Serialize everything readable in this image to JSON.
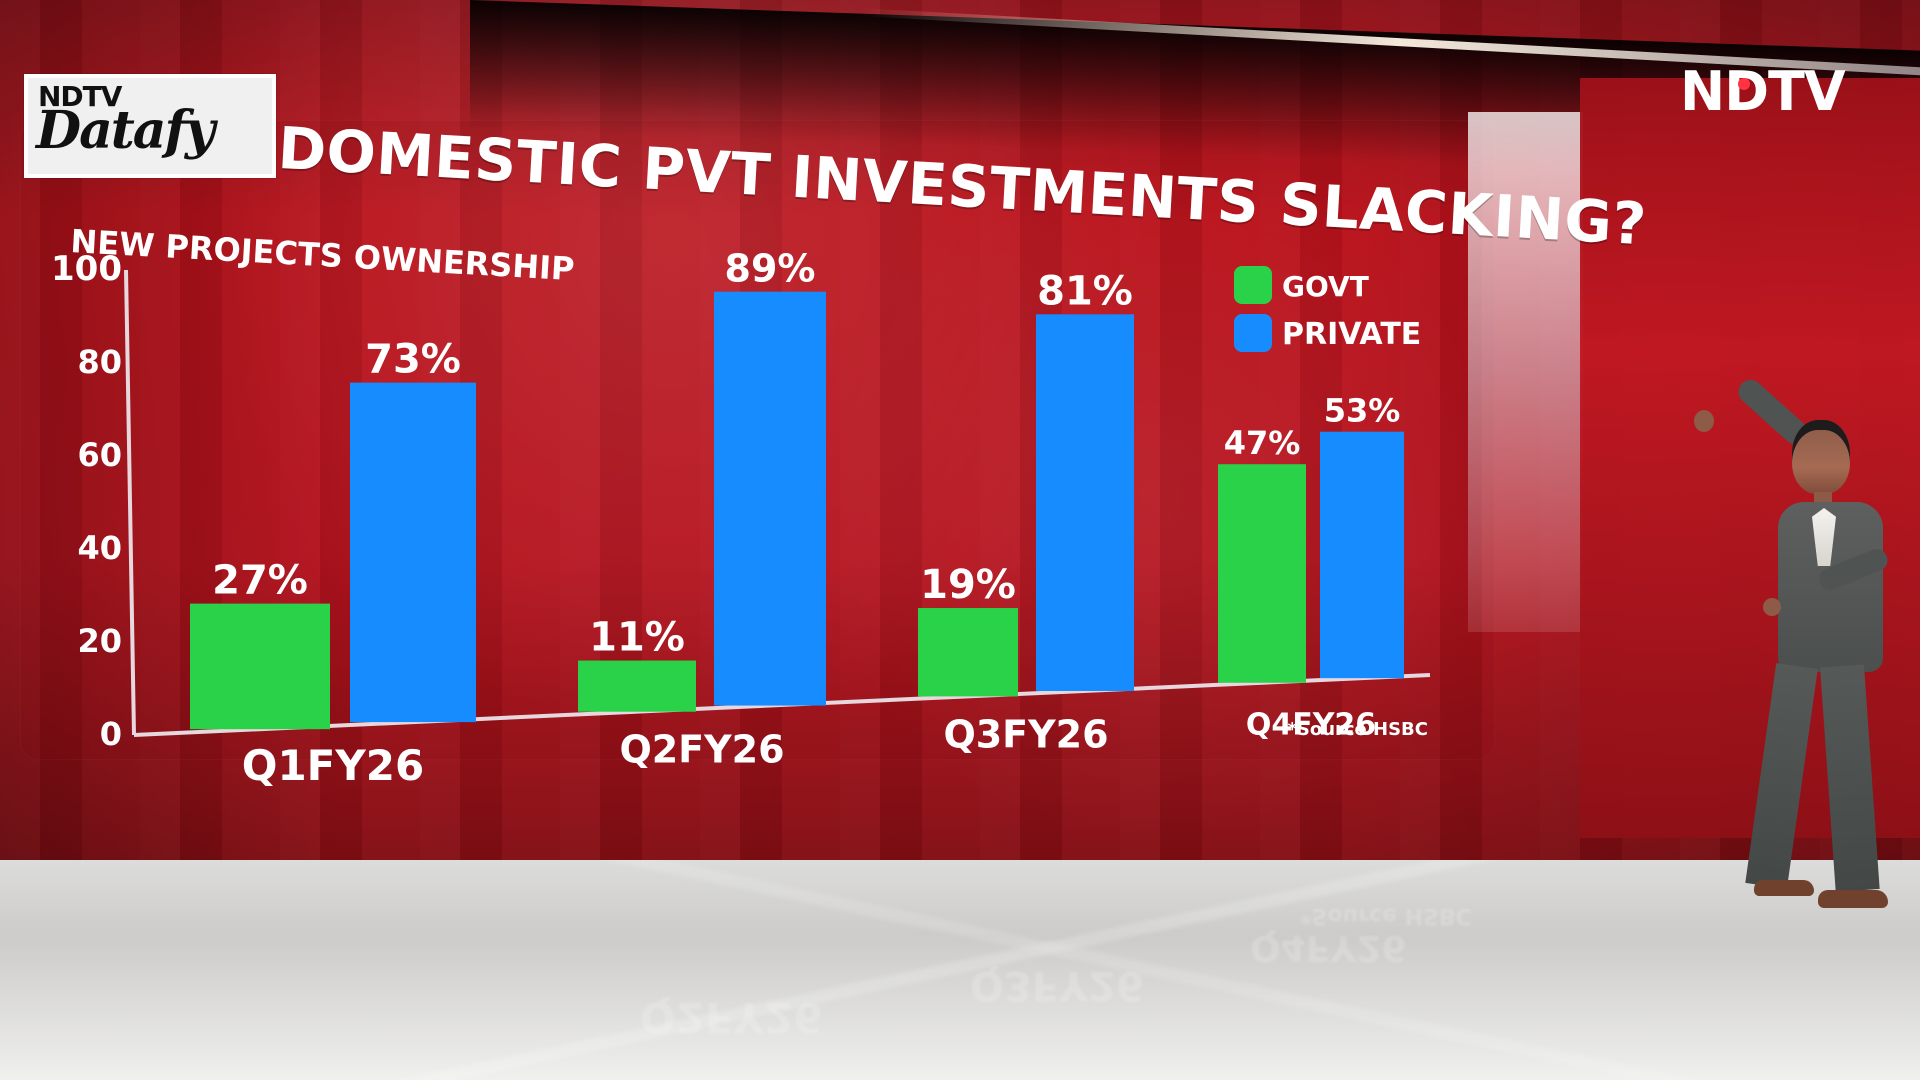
{
  "header": {
    "logo_line1": "NDTV",
    "logo_line2": "Datafy",
    "title": "DOMESTIC PVT INVESTMENTS SLACKING?",
    "brand": "NDTV"
  },
  "chart_data": {
    "type": "bar",
    "title": "NEW PROJECTS OWNERSHIP",
    "categories": [
      "Q1FY26",
      "Q2FY26",
      "Q3FY26",
      "Q4FY26"
    ],
    "series": [
      {
        "name": "GOVT",
        "values": [
          27,
          11,
          19,
          47
        ],
        "color": "#2ad24a"
      },
      {
        "name": "PRIVATE",
        "values": [
          73,
          89,
          81,
          53
        ],
        "color": "#168cff"
      }
    ],
    "ylim": [
      0,
      100
    ],
    "yticks": [
      0,
      20,
      40,
      60,
      80,
      100
    ],
    "value_labels": {
      "GOVT": [
        "27%",
        "11%",
        "19%",
        "47%"
      ],
      "PRIVATE": [
        "73%",
        "89%",
        "81%",
        "53%"
      ]
    },
    "legend_position": "top-right",
    "source_note": "*Source HSBC"
  },
  "reflection": {
    "labels": [
      "Q2FY26",
      "Q3FY26",
      "Q4FY26",
      "*Source HSBC"
    ]
  },
  "colors": {
    "screen_red": "#c3141d",
    "govt_green": "#2ad24a",
    "private_blue": "#168cff",
    "white": "#ffffff"
  }
}
